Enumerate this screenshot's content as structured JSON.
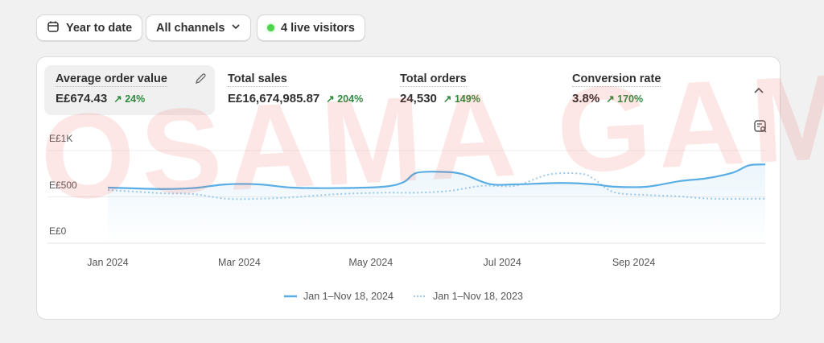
{
  "filters": {
    "date_range": "Year to date",
    "channels": "All channels",
    "live_visitors": "4 live visitors"
  },
  "metrics": [
    {
      "label": "Average order value",
      "value": "E£674.43",
      "delta": "24%"
    },
    {
      "label": "Total sales",
      "value": "E£16,674,985.87",
      "delta": "204%"
    },
    {
      "label": "Total orders",
      "value": "24,530",
      "delta": "149%"
    },
    {
      "label": "Conversion rate",
      "value": "3.8%",
      "delta": "170%"
    }
  ],
  "watermark": "OSAMA GAMAL",
  "colors": {
    "current": "#5aaee3",
    "previous": "#9fcbe8",
    "delta_up": "#2e8a3c",
    "live_dot": "#4cd44c"
  },
  "chart_data": {
    "type": "line",
    "ylabel": "",
    "xlabel": "",
    "ylim": [
      0,
      1000
    ],
    "xlim": [
      0,
      10
    ],
    "yticks": [
      {
        "v": 1000,
        "label": "E£1K"
      },
      {
        "v": 500,
        "label": "E£500"
      },
      {
        "v": 0,
        "label": "E£0"
      }
    ],
    "xticks": [
      {
        "v": 0,
        "label": "Jan 2024"
      },
      {
        "v": 2,
        "label": "Mar 2024"
      },
      {
        "v": 4,
        "label": "May 2024"
      },
      {
        "v": 6,
        "label": "Jul 2024"
      },
      {
        "v": 8,
        "label": "Sep 2024"
      }
    ],
    "series": [
      {
        "name": "Jan 1–Nov 18, 2024",
        "style": "solid",
        "x": [
          0,
          0.8,
          1.3,
          1.8,
          2.3,
          2.8,
          3.5,
          4.2,
          4.5,
          4.7,
          5.1,
          5.4,
          5.8,
          6.2,
          6.9,
          7.4,
          7.7,
          8.2,
          8.7,
          9.1,
          9.5,
          9.75,
          10
        ],
        "y": [
          600,
          585,
          595,
          635,
          635,
          600,
          595,
          610,
          660,
          760,
          770,
          745,
          640,
          635,
          650,
          635,
          610,
          610,
          670,
          700,
          760,
          840,
          850
        ]
      },
      {
        "name": "Jan 1–Nov 18, 2023",
        "style": "dotted",
        "x": [
          0,
          0.8,
          1.3,
          1.8,
          2.3,
          2.8,
          3.5,
          4.2,
          4.7,
          5.2,
          5.7,
          6.2,
          6.7,
          7.2,
          7.4,
          7.7,
          8.2,
          8.7,
          9.2,
          10
        ],
        "y": [
          575,
          540,
          530,
          480,
          480,
          495,
          530,
          545,
          545,
          565,
          620,
          620,
          740,
          750,
          690,
          550,
          520,
          505,
          480,
          480
        ]
      }
    ]
  }
}
